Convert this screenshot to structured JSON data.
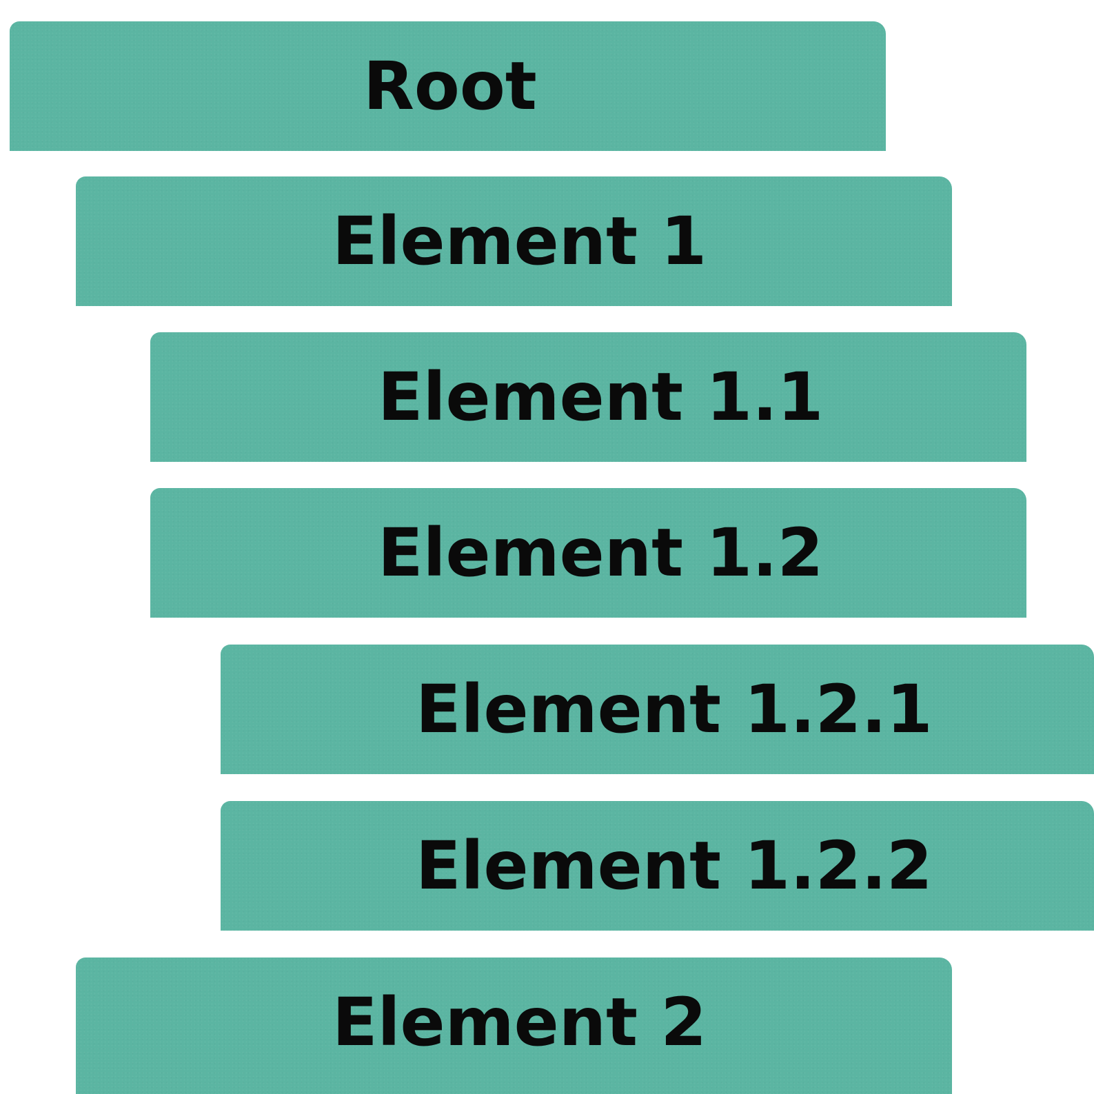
{
  "tree": {
    "fill_color": "#5bb5a2",
    "text_color": "#0a0a0a",
    "nodes": [
      {
        "label": "Root",
        "depth": 0
      },
      {
        "label": "Element 1",
        "depth": 1
      },
      {
        "label": "Element 1.1",
        "depth": 2
      },
      {
        "label": "Element 1.2",
        "depth": 2
      },
      {
        "label": "Element 1.2.1",
        "depth": 3
      },
      {
        "label": "Element 1.2.2",
        "depth": 3
      },
      {
        "label": "Element 2",
        "depth": 1
      }
    ]
  }
}
